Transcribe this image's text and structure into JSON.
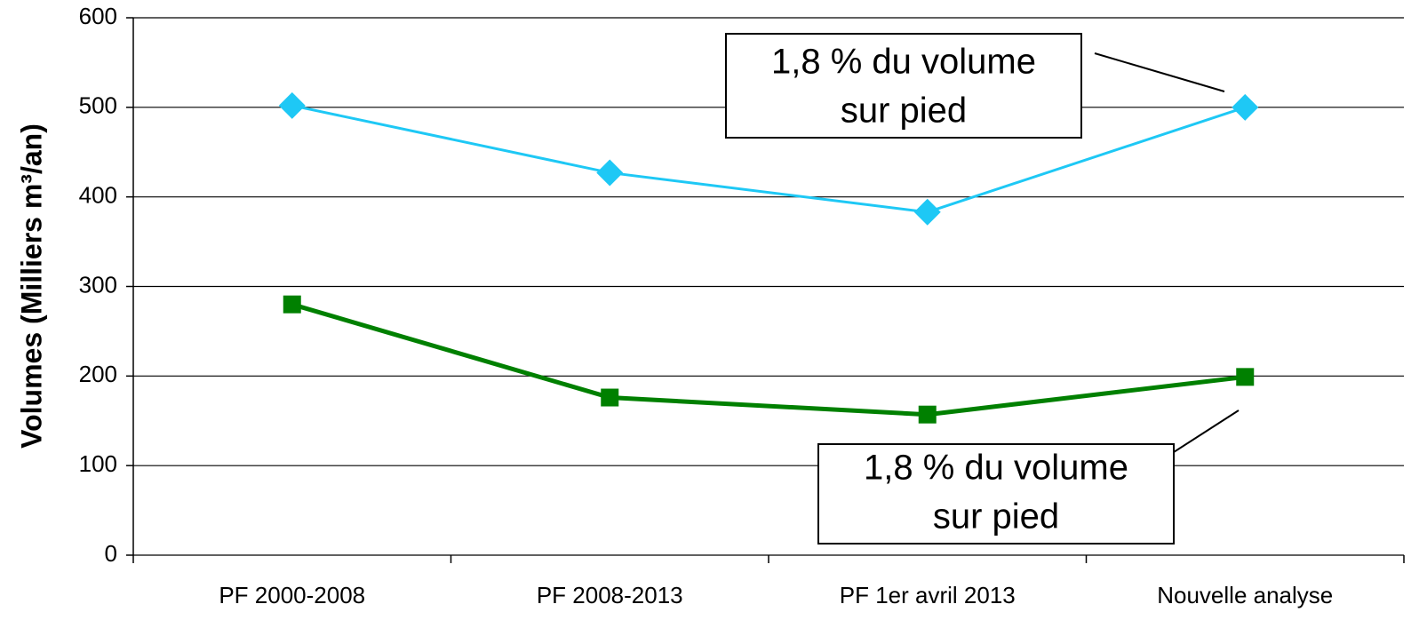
{
  "chart_data": {
    "type": "line",
    "y_label": "Volumes (Milliers m³/an)",
    "categories": [
      "PF 2000-2008",
      "PF 2008-2013",
      "PF 1er avril 2013",
      "Nouvelle analyse"
    ],
    "series": [
      {
        "color": "#1ec8f5",
        "marker": "diamond",
        "values": [
          502,
          427,
          383,
          500
        ]
      },
      {
        "color": "#008000",
        "marker": "square",
        "values": [
          280,
          176,
          157,
          199
        ]
      }
    ],
    "ylim": [
      0,
      600
    ],
    "yticks": [
      0,
      100,
      200,
      300,
      400,
      500,
      600
    ],
    "grid": true,
    "annotations": [
      {
        "lines": [
          "1,8 % du volume",
          "sur pied"
        ]
      },
      {
        "lines": [
          "1,8 % du volume",
          "sur pied"
        ]
      }
    ]
  }
}
